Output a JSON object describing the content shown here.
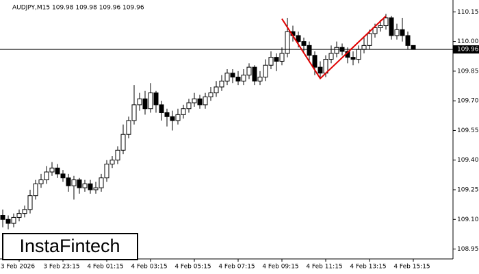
{
  "chart_data": {
    "type": "candlestick",
    "title": "AUDJPY,M15  109.98 109.98 109.96 109.96",
    "categories": [
      null,
      null,
      null,
      "3 Feb 2026",
      null,
      null,
      null,
      null,
      null,
      null,
      null,
      "3 Feb 23:15",
      null,
      null,
      null,
      null,
      null,
      null,
      null,
      "4 Feb 01:15",
      null,
      null,
      null,
      null,
      null,
      null,
      null,
      "4 Feb 03:15",
      null,
      null,
      null,
      null,
      null,
      null,
      null,
      "4 Feb 05:15",
      null,
      null,
      null,
      null,
      null,
      null,
      null,
      "4 Feb 07:15",
      null,
      null,
      null,
      null,
      null,
      null,
      null,
      "4 Feb 09:15",
      null,
      null,
      null,
      null,
      null,
      null,
      null,
      "4 Feb 11:15",
      null,
      null,
      null,
      null,
      null,
      null,
      null,
      "4 Feb 13:15",
      null,
      null,
      null,
      null,
      null,
      null,
      null,
      "4 Feb 15:15"
    ],
    "open": [
      109.12,
      109.1,
      109.08,
      109.11,
      109.13,
      109.15,
      109.22,
      109.28,
      109.3,
      109.34,
      109.36,
      109.33,
      109.31,
      109.27,
      109.3,
      109.26,
      109.28,
      109.25,
      109.26,
      109.31,
      109.38,
      109.4,
      109.45,
      109.53,
      109.6,
      109.68,
      109.71,
      109.66,
      109.74,
      109.68,
      109.64,
      109.62,
      109.6,
      109.63,
      109.66,
      109.69,
      109.71,
      109.68,
      109.72,
      109.74,
      109.77,
      109.8,
      109.84,
      109.82,
      109.8,
      109.83,
      109.87,
      109.8,
      109.82,
      109.88,
      109.92,
      109.9,
      109.94,
      110.05,
      110.03,
      110.0,
      109.98,
      109.93,
      109.87,
      109.84,
      109.91,
      109.94,
      109.97,
      109.95,
      109.92,
      109.91,
      109.96,
      109.98,
      110.04,
      110.07,
      110.08,
      110.12,
      110.03,
      110.06,
      110.03,
      109.98
    ],
    "high": [
      109.15,
      109.12,
      109.13,
      109.15,
      109.17,
      109.25,
      109.3,
      109.33,
      109.37,
      109.39,
      109.38,
      109.35,
      109.33,
      109.32,
      109.31,
      109.3,
      109.3,
      109.29,
      109.33,
      109.4,
      109.42,
      109.47,
      109.58,
      109.62,
      109.78,
      109.74,
      109.75,
      109.79,
      109.75,
      109.7,
      109.66,
      109.65,
      109.66,
      109.68,
      109.71,
      109.74,
      109.73,
      109.74,
      109.77,
      109.8,
      109.83,
      109.86,
      109.86,
      109.85,
      109.86,
      109.89,
      109.88,
      109.85,
      109.91,
      109.95,
      109.94,
      109.97,
      110.12,
      110.08,
      110.05,
      110.02,
      110.0,
      109.95,
      109.9,
      109.93,
      109.98,
      110.0,
      109.99,
      109.97,
      109.95,
      109.98,
      110.02,
      110.06,
      110.09,
      110.11,
      110.14,
      110.13,
      110.09,
      110.12,
      110.05,
      109.98
    ],
    "low": [
      109.06,
      109.05,
      109.06,
      109.09,
      109.11,
      109.13,
      109.2,
      109.26,
      109.28,
      109.32,
      109.31,
      109.29,
      109.24,
      109.2,
      109.23,
      109.24,
      109.23,
      109.23,
      109.24,
      109.29,
      109.36,
      109.38,
      109.43,
      109.51,
      109.58,
      109.65,
      109.63,
      109.64,
      109.64,
      109.6,
      109.57,
      109.55,
      109.58,
      109.61,
      109.64,
      109.67,
      109.66,
      109.66,
      109.7,
      109.72,
      109.75,
      109.78,
      109.79,
      109.78,
      109.78,
      109.81,
      109.78,
      109.78,
      109.8,
      109.86,
      109.85,
      109.88,
      109.92,
      110.0,
      109.97,
      109.95,
      109.9,
      109.83,
      109.81,
      109.82,
      109.89,
      109.92,
      109.93,
      109.89,
      109.88,
      109.89,
      109.94,
      109.96,
      110.02,
      110.05,
      110.06,
      110.01,
      110.01,
      110.0,
      109.96,
      109.96
    ],
    "close": [
      109.1,
      109.08,
      109.11,
      109.13,
      109.15,
      109.22,
      109.28,
      109.3,
      109.34,
      109.36,
      109.33,
      109.31,
      109.27,
      109.3,
      109.26,
      109.28,
      109.25,
      109.26,
      109.31,
      109.38,
      109.4,
      109.45,
      109.53,
      109.6,
      109.68,
      109.71,
      109.66,
      109.74,
      109.68,
      109.64,
      109.62,
      109.6,
      109.63,
      109.66,
      109.69,
      109.71,
      109.68,
      109.72,
      109.74,
      109.77,
      109.8,
      109.84,
      109.82,
      109.8,
      109.83,
      109.87,
      109.8,
      109.82,
      109.88,
      109.92,
      109.9,
      109.94,
      110.05,
      110.03,
      110.0,
      109.98,
      109.93,
      109.87,
      109.84,
      109.91,
      109.94,
      109.97,
      109.95,
      109.92,
      109.91,
      109.96,
      109.98,
      110.04,
      110.07,
      110.08,
      110.12,
      110.03,
      110.06,
      110.03,
      109.98,
      109.96
    ],
    "up_color": "#ffffff",
    "down_color": "#000000",
    "ylim": [
      108.9,
      110.21
    ],
    "yticks": [
      108.95,
      {
        "value": 109.1,
        "label": "109.10"
      },
      109.25,
      {
        "value": 109.4,
        "label": "109.40"
      },
      109.55,
      {
        "value": 109.7,
        "label": "109.70"
      },
      109.85,
      {
        "value": 110.0,
        "label": "110.00"
      },
      110.15
    ],
    "current_price": 109.96,
    "pattern": {
      "color": "#e00000",
      "x": [
        51,
        58,
        70
      ],
      "y": [
        110.115,
        109.813,
        110.129
      ]
    },
    "logo": "InstaFintech"
  }
}
